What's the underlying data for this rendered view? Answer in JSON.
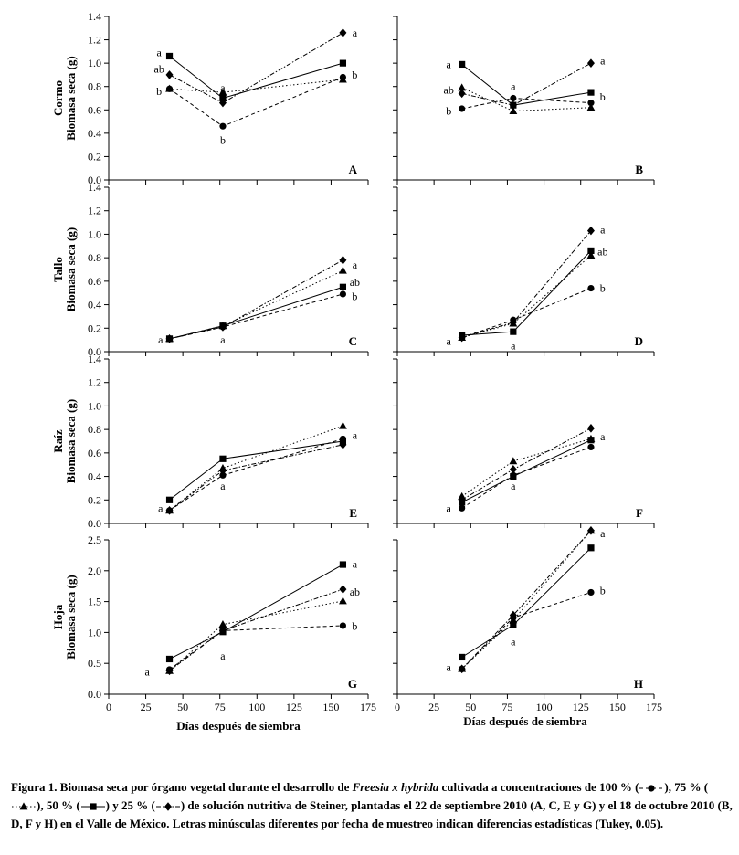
{
  "figure": {
    "xlabel": "Días después de siembra",
    "row_titles": [
      {
        "organ": "Cormo",
        "unit": "Biomasa seca (g)"
      },
      {
        "organ": "Tallo",
        "unit": "Biomasa seca (g)"
      },
      {
        "organ": "Raíz",
        "unit": "Biomasa seca (g)"
      },
      {
        "organ": "Hoja",
        "unit": "Biomasa seca (g)"
      }
    ]
  },
  "series_styles": [
    {
      "name": "100 %",
      "marker": "circle",
      "dash": "4,3"
    },
    {
      "name": "75 %",
      "marker": "triangle",
      "dash": "1.5,2.5"
    },
    {
      "name": "50 %",
      "marker": "square",
      "dash": ""
    },
    {
      "name": "25 %",
      "marker": "diamond",
      "dash": "5,2,1.5,2"
    }
  ],
  "chart_data": [
    {
      "type": "line",
      "panel": "A",
      "ylim": [
        0,
        1.4
      ],
      "yticks": [
        "0.0",
        "0.2",
        "0.4",
        "0.6",
        "0.8",
        "1.0",
        "1.2",
        "1.4"
      ],
      "xlim": [
        0,
        175
      ],
      "xticks": [],
      "x": [
        41,
        77,
        158
      ],
      "series": [
        {
          "name": "100 %",
          "values": [
            0.78,
            0.46,
            0.88
          ]
        },
        {
          "name": "75 %",
          "values": [
            0.78,
            0.75,
            0.86
          ]
        },
        {
          "name": "50 %",
          "values": [
            1.06,
            0.7,
            1.0
          ]
        },
        {
          "name": "25 %",
          "values": [
            0.9,
            0.66,
            1.26
          ]
        }
      ],
      "annotations": [
        {
          "text": "a",
          "x": 34,
          "y": 1.09
        },
        {
          "text": "ab",
          "x": 34,
          "y": 0.95
        },
        {
          "text": "b",
          "x": 34,
          "y": 0.76
        },
        {
          "text": "a",
          "x": 77,
          "y": 0.79
        },
        {
          "text": "b",
          "x": 77,
          "y": 0.34
        },
        {
          "text": "a",
          "x": 166,
          "y": 1.26
        },
        {
          "text": "b",
          "x": 166,
          "y": 0.9
        }
      ]
    },
    {
      "type": "line",
      "panel": "B",
      "ylim": [
        0,
        1.4
      ],
      "yticks": [],
      "xlim": [
        0,
        175
      ],
      "xticks": [],
      "x": [
        44,
        79,
        132
      ],
      "series": [
        {
          "name": "100 %",
          "values": [
            0.61,
            0.7,
            0.66
          ]
        },
        {
          "name": "75 %",
          "values": [
            0.79,
            0.59,
            0.62
          ]
        },
        {
          "name": "50 %",
          "values": [
            0.99,
            0.64,
            0.75
          ]
        },
        {
          "name": "25 %",
          "values": [
            0.74,
            0.64,
            1.0
          ]
        }
      ],
      "annotations": [
        {
          "text": "a",
          "x": 35,
          "y": 0.99
        },
        {
          "text": "ab",
          "x": 35,
          "y": 0.77
        },
        {
          "text": "b",
          "x": 35,
          "y": 0.59
        },
        {
          "text": "a",
          "x": 79,
          "y": 0.8
        },
        {
          "text": "a",
          "x": 140,
          "y": 1.02
        },
        {
          "text": "b",
          "x": 140,
          "y": 0.71
        }
      ]
    },
    {
      "type": "line",
      "panel": "C",
      "ylim": [
        0,
        1.4
      ],
      "yticks": [
        "0.0",
        "0.2",
        "0.4",
        "0.6",
        "0.8",
        "1.0",
        "1.2",
        "1.4"
      ],
      "xlim": [
        0,
        175
      ],
      "xticks": [],
      "x": [
        41,
        77,
        158
      ],
      "series": [
        {
          "name": "100 %",
          "values": [
            0.11,
            0.21,
            0.49
          ]
        },
        {
          "name": "75 %",
          "values": [
            0.11,
            0.22,
            0.69
          ]
        },
        {
          "name": "50 %",
          "values": [
            0.11,
            0.22,
            0.55
          ]
        },
        {
          "name": "25 %",
          "values": [
            0.11,
            0.21,
            0.78
          ]
        }
      ],
      "annotations": [
        {
          "text": "a",
          "x": 35,
          "y": 0.1
        },
        {
          "text": "a",
          "x": 77,
          "y": 0.1
        },
        {
          "text": "a",
          "x": 166,
          "y": 0.74
        },
        {
          "text": "ab",
          "x": 166,
          "y": 0.59
        },
        {
          "text": "b",
          "x": 166,
          "y": 0.47
        }
      ]
    },
    {
      "type": "line",
      "panel": "D",
      "ylim": [
        0,
        1.4
      ],
      "yticks": [],
      "xlim": [
        0,
        175
      ],
      "xticks": [],
      "x": [
        44,
        79,
        132
      ],
      "series": [
        {
          "name": "100 %",
          "values": [
            0.12,
            0.27,
            0.54
          ]
        },
        {
          "name": "75 %",
          "values": [
            0.12,
            0.24,
            0.82
          ]
        },
        {
          "name": "50 %",
          "values": [
            0.14,
            0.17,
            0.86
          ]
        },
        {
          "name": "25 %",
          "values": [
            0.12,
            0.25,
            1.03
          ]
        }
      ],
      "annotations": [
        {
          "text": "a",
          "x": 35,
          "y": 0.09
        },
        {
          "text": "a",
          "x": 79,
          "y": 0.05
        },
        {
          "text": "a",
          "x": 140,
          "y": 1.04
        },
        {
          "text": "ab",
          "x": 140,
          "y": 0.85
        },
        {
          "text": "b",
          "x": 140,
          "y": 0.54
        }
      ]
    },
    {
      "type": "line",
      "panel": "E",
      "ylim": [
        0,
        1.4
      ],
      "yticks": [
        "0.0",
        "0.2",
        "0.4",
        "0.6",
        "0.8",
        "1.0",
        "1.2",
        "1.4"
      ],
      "xlim": [
        0,
        175
      ],
      "xticks": [],
      "x": [
        41,
        77,
        158
      ],
      "series": [
        {
          "name": "100 %",
          "values": [
            0.11,
            0.41,
            0.72
          ]
        },
        {
          "name": "75 %",
          "values": [
            0.11,
            0.47,
            0.83
          ]
        },
        {
          "name": "50 %",
          "values": [
            0.2,
            0.55,
            0.7
          ]
        },
        {
          "name": "25 %",
          "values": [
            0.11,
            0.45,
            0.67
          ]
        }
      ],
      "annotations": [
        {
          "text": "a",
          "x": 35,
          "y": 0.13
        },
        {
          "text": "a",
          "x": 77,
          "y": 0.32
        },
        {
          "text": "a",
          "x": 166,
          "y": 0.75
        }
      ]
    },
    {
      "type": "line",
      "panel": "F",
      "ylim": [
        0,
        1.4
      ],
      "yticks": [],
      "xlim": [
        0,
        175
      ],
      "xticks": [],
      "x": [
        44,
        79,
        132
      ],
      "series": [
        {
          "name": "100 %",
          "values": [
            0.13,
            0.41,
            0.65
          ]
        },
        {
          "name": "75 %",
          "values": [
            0.23,
            0.53,
            0.72
          ]
        },
        {
          "name": "50 %",
          "values": [
            0.18,
            0.4,
            0.71
          ]
        },
        {
          "name": "25 %",
          "values": [
            0.2,
            0.46,
            0.81
          ]
        }
      ],
      "annotations": [
        {
          "text": "a",
          "x": 35,
          "y": 0.13
        },
        {
          "text": "a",
          "x": 79,
          "y": 0.32
        },
        {
          "text": "a",
          "x": 140,
          "y": 0.74
        }
      ]
    },
    {
      "type": "line",
      "panel": "G",
      "ylim": [
        0,
        2.5
      ],
      "yticks": [
        "0.0",
        "0.5",
        "1.0",
        "1.5",
        "2.0",
        "2.5"
      ],
      "xlim": [
        0,
        175
      ],
      "xticks": [
        "0",
        "25",
        "50",
        "75",
        "100",
        "125",
        "150",
        "175"
      ],
      "x": [
        41,
        77,
        158
      ],
      "series": [
        {
          "name": "100 %",
          "values": [
            0.4,
            1.03,
            1.11
          ]
        },
        {
          "name": "75 %",
          "values": [
            0.38,
            1.13,
            1.51
          ]
        },
        {
          "name": "50 %",
          "values": [
            0.57,
            1.01,
            2.1
          ]
        },
        {
          "name": "25 %",
          "values": [
            0.38,
            1.03,
            1.7
          ]
        }
      ],
      "annotations": [
        {
          "text": "a",
          "x": 26,
          "y": 0.36
        },
        {
          "text": "a",
          "x": 77,
          "y": 0.62
        },
        {
          "text": "a",
          "x": 166,
          "y": 2.11
        },
        {
          "text": "ab",
          "x": 166,
          "y": 1.66
        },
        {
          "text": "b",
          "x": 166,
          "y": 1.1
        }
      ]
    },
    {
      "type": "line",
      "panel": "H",
      "ylim": [
        0,
        2.5
      ],
      "yticks": [],
      "xlim": [
        0,
        175
      ],
      "xticks": [
        "0",
        "25",
        "50",
        "75",
        "100",
        "125",
        "150",
        "175"
      ],
      "x": [
        44,
        79,
        132
      ],
      "series": [
        {
          "name": "100 %",
          "values": [
            0.41,
            1.24,
            1.65
          ]
        },
        {
          "name": "75 %",
          "values": [
            0.41,
            1.2,
            2.65
          ]
        },
        {
          "name": "50 %",
          "values": [
            0.6,
            1.12,
            2.37
          ]
        },
        {
          "name": "25 %",
          "values": [
            0.41,
            1.28,
            2.65
          ]
        }
      ],
      "annotations": [
        {
          "text": "a",
          "x": 35,
          "y": 0.44
        },
        {
          "text": "a",
          "x": 79,
          "y": 0.85
        },
        {
          "text": "a",
          "x": 140,
          "y": 2.6
        },
        {
          "text": "b",
          "x": 140,
          "y": 1.68
        }
      ]
    }
  ],
  "caption": {
    "lead": "Figura 1. Biomasa seca por órgano vegetal durante el desarrollo de ",
    "species": "Freesia x hybrida",
    "mid": " cultivada a concentraciones de 100 % (",
    "s75": "), 75 % (",
    "s50": "), 50 % (",
    "s25": ") y 25 % (",
    "tail": ") de solución nutritiva de Steiner, plantadas el 22 de septiembre 2010 (A, C, E y G) y el 18 de octubre 2010 (B, D, F y H) en el Valle de México. Letras minúsculas diferentes por fecha de muestreo indican diferencias estadísticas (Tukey, 0.05)."
  }
}
